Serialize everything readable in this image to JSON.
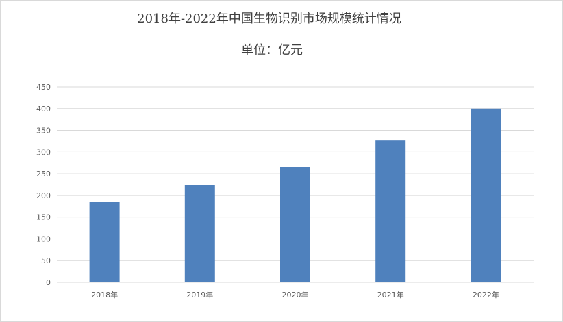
{
  "chart_data": {
    "type": "bar",
    "title": "2018年-2022年中国生物识别市场规模统计情况",
    "subtitle": "单位：亿元",
    "categories": [
      "2018年",
      "2019年",
      "2020年",
      "2021年",
      "2022年"
    ],
    "values": [
      185,
      224,
      265,
      327,
      400
    ],
    "xlabel": "",
    "ylabel": "",
    "ylim": [
      0,
      450
    ],
    "yticks": [
      0,
      50,
      100,
      150,
      200,
      250,
      300,
      350,
      400,
      450
    ],
    "grid": true,
    "legend": "none",
    "colors": {
      "bar": "#4f81bd",
      "grid": "#d9d9d9"
    }
  }
}
